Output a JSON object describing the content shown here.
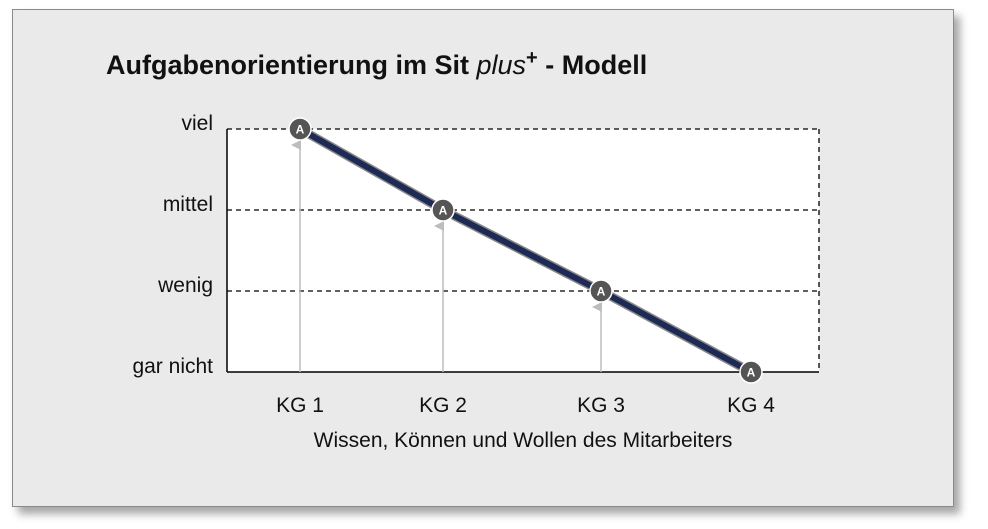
{
  "chart_data": {
    "type": "line",
    "title_main": "Aufgabenorientierung im Sit ",
    "title_italic": "plus",
    "title_sup": "+",
    "title_tail": " - Modell",
    "xlabel": "Wissen, Können und Wollen des Mitarbeiters",
    "ylabel": "",
    "categories": [
      "KG 1",
      "KG 2",
      "KG 3",
      "KG 4"
    ],
    "y_levels": [
      "gar nicht",
      "wenig",
      "mittel",
      "viel"
    ],
    "series": [
      {
        "values": [
          3,
          2,
          1,
          0
        ],
        "marker_label": "A"
      }
    ],
    "grid": "horizontal dashed",
    "colors": {
      "line": "#1c2a55",
      "marker": "#555555",
      "arrow": "#bdbdbd",
      "plot_bg": "#ffffff",
      "frame_bg": "#eaeaea"
    }
  }
}
